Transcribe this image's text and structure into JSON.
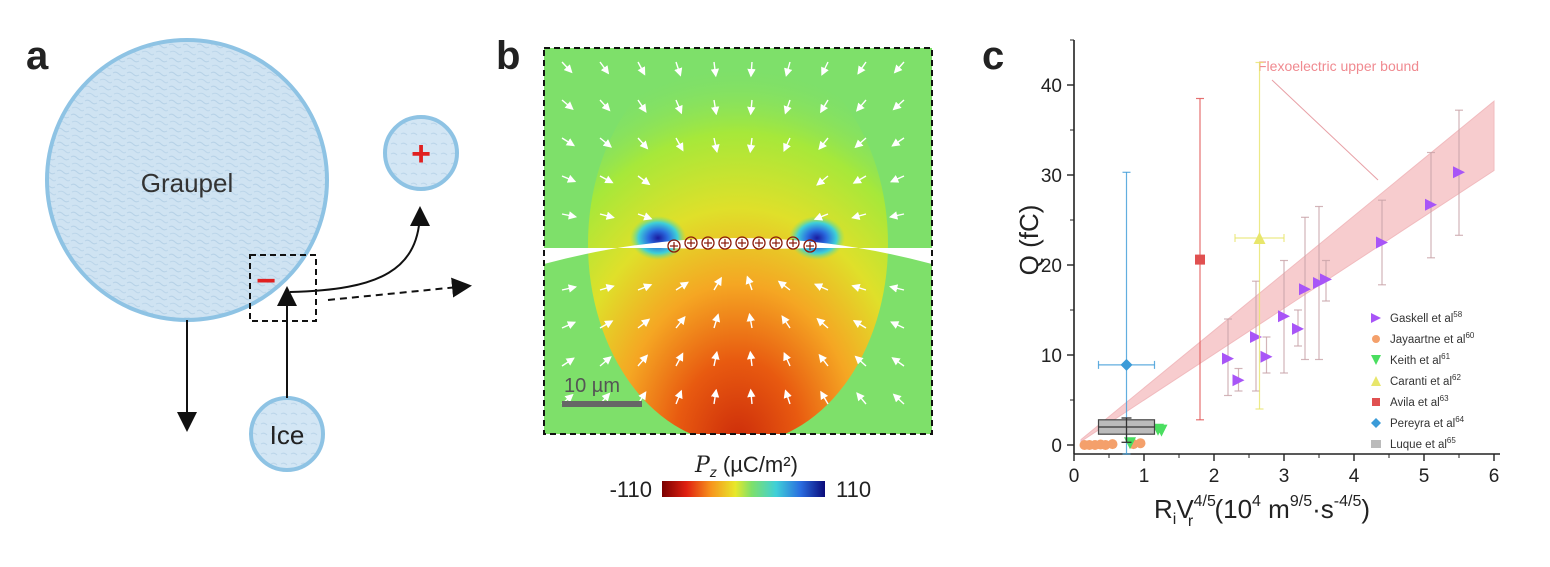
{
  "panel_labels": {
    "a": "a",
    "b": "b",
    "c": "c"
  },
  "panel_a": {
    "graupel_label": "Graupel",
    "ice_label": "Ice",
    "negative_sign": "−",
    "positive_sign": "+"
  },
  "panel_b": {
    "scale_bar_label": "10 µm",
    "colorbar_label_symbol": "P",
    "colorbar_label_subscript": "z",
    "colorbar_label_units": " (µC/m²)",
    "colorbar_min": "-110",
    "colorbar_max": "110"
  },
  "chart_data": {
    "type": "scatter",
    "xlabel_main": "R",
    "xlabel_sub_i": "i",
    "xlabel_V": "V",
    "xlabel_sub_r": "r",
    "xlabel_sup": "4/5",
    "xlabel_units_open": " (10",
    "xlabel_units_sup4": "4",
    "xlabel_units_m": " m",
    "xlabel_units_sup95": "9/5",
    "xlabel_units_s": "·s",
    "xlabel_units_sup45": "-4/5",
    "xlabel_units_close": ")",
    "ylabel": "Q (fC)",
    "xlim": [
      0,
      6
    ],
    "ylim": [
      -1,
      45
    ],
    "x_ticks": [
      "0",
      "1",
      "2",
      "3",
      "4",
      "5",
      "6"
    ],
    "y_ticks": [
      "0",
      "10",
      "20",
      "30",
      "40"
    ],
    "band_label": "Flexoelectric upper bound",
    "band": {
      "lower_x": [
        0.1,
        6.0
      ],
      "lower_y": [
        0.4,
        30.5
      ],
      "upper_x": [
        0.1,
        6.0
      ],
      "upper_y": [
        0.6,
        38.2
      ]
    },
    "legend_position": "bottom-right",
    "series": [
      {
        "name_main": "Gaskell et al",
        "name_sup": "58",
        "color": "#a855f7",
        "marker": "triangle-right",
        "points": [
          {
            "x": 2.2,
            "y": 9.6,
            "ylo": 5.5,
            "yhi": 14.0
          },
          {
            "x": 2.35,
            "y": 7.2,
            "ylo": 6.0,
            "yhi": 8.5
          },
          {
            "x": 2.6,
            "y": 12.0,
            "ylo": 6.0,
            "yhi": 18.2
          },
          {
            "x": 2.75,
            "y": 9.8,
            "ylo": 8.0,
            "yhi": 12.0
          },
          {
            "x": 3.0,
            "y": 14.3,
            "ylo": 8.0,
            "yhi": 20.5
          },
          {
            "x": 3.2,
            "y": 12.9,
            "ylo": 11.0,
            "yhi": 15.0
          },
          {
            "x": 3.3,
            "y": 17.3,
            "ylo": 9.5,
            "yhi": 25.3
          },
          {
            "x": 3.5,
            "y": 18.0,
            "ylo": 9.5,
            "yhi": 26.5
          },
          {
            "x": 3.6,
            "y": 18.4,
            "ylo": 16.0,
            "yhi": 20.5
          },
          {
            "x": 4.4,
            "y": 22.5,
            "ylo": 17.8,
            "yhi": 27.2
          },
          {
            "x": 5.1,
            "y": 26.7,
            "ylo": 20.8,
            "yhi": 32.5
          },
          {
            "x": 5.5,
            "y": 30.3,
            "ylo": 23.3,
            "yhi": 37.2
          }
        ]
      },
      {
        "name_main": "Jayaartne et al",
        "name_sup": "60",
        "color": "#f4a06b",
        "marker": "circle",
        "points": [
          {
            "x": 0.15,
            "y": 0.0
          },
          {
            "x": 0.22,
            "y": 0.0
          },
          {
            "x": 0.3,
            "y": 0.0
          },
          {
            "x": 0.38,
            "y": 0.05
          },
          {
            "x": 0.45,
            "y": 0.0
          },
          {
            "x": 0.55,
            "y": 0.1
          },
          {
            "x": 0.85,
            "y": 0.1
          },
          {
            "x": 0.95,
            "y": 0.2
          }
        ]
      },
      {
        "name_main": "Keith et al",
        "name_sup": "61",
        "color": "#4ade60",
        "marker": "triangle-down",
        "points": [
          {
            "x": 0.8,
            "y": 0.2
          },
          {
            "x": 1.2,
            "y": 1.7
          },
          {
            "x": 1.25,
            "y": 1.6
          }
        ]
      },
      {
        "name_main": "Caranti et al",
        "name_sup": "62",
        "color": "#e8e66b",
        "marker": "triangle-up",
        "points": [
          {
            "x": 2.65,
            "y": 23.0,
            "ylo": 4.0,
            "yhi": 42.5,
            "xlo": 2.3,
            "xhi": 3.0
          }
        ]
      },
      {
        "name_main": "Avila et al",
        "name_sup": "63",
        "color": "#e05050",
        "marker": "square",
        "points": [
          {
            "x": 1.8,
            "y": 20.6,
            "ylo": 2.8,
            "yhi": 38.5
          }
        ]
      },
      {
        "name_main": "Pereyra et al",
        "name_sup": "64",
        "color": "#3b9bd8",
        "marker": "diamond",
        "points": [
          {
            "x": 0.75,
            "y": 8.9,
            "ylo": -1.0,
            "yhi": 30.3,
            "xlo": 0.35,
            "xhi": 1.15
          }
        ]
      },
      {
        "name_main": "Luque et al",
        "name_sup": "65",
        "color": "#bbbbbb",
        "marker": "box",
        "points": [
          {
            "x": 0.75,
            "y": 2.0,
            "ylo": 1.2,
            "yhi": 2.8,
            "xlo": 0.35,
            "xhi": 1.15,
            "wlo": 0.3,
            "whi": 3.0
          }
        ]
      }
    ]
  }
}
